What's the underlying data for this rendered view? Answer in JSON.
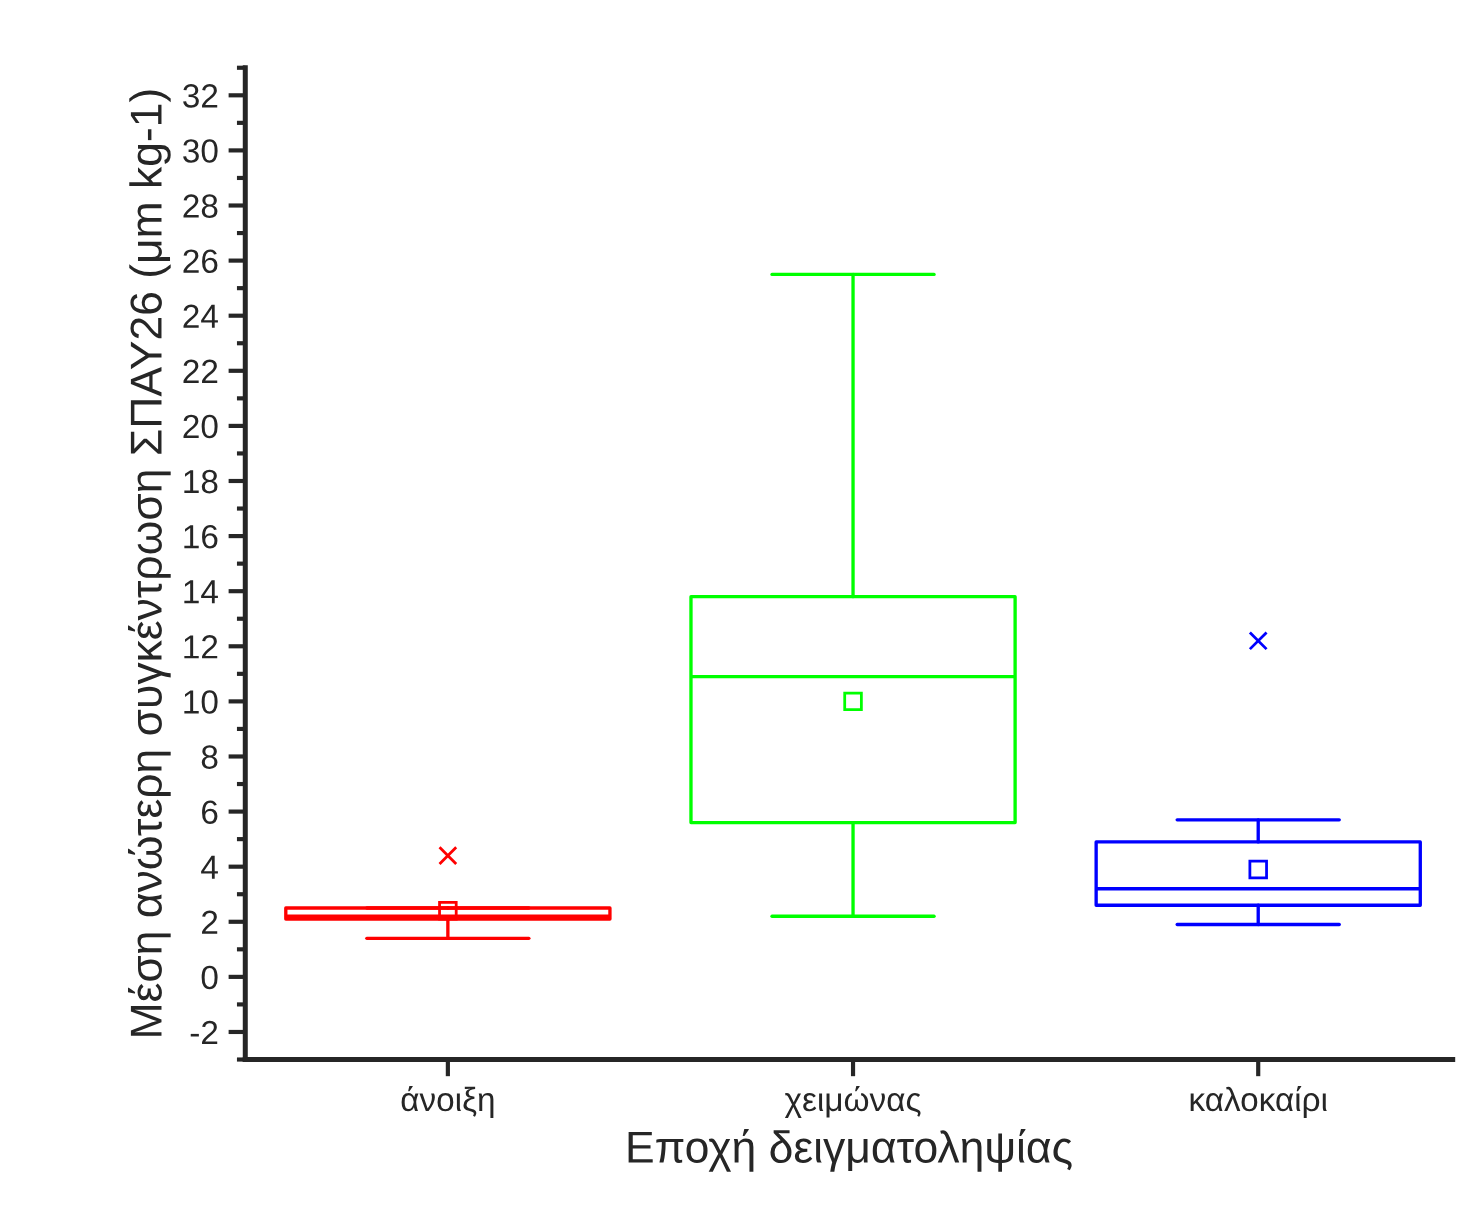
{
  "chart_data": {
    "type": "box",
    "xlabel": "Εποχή δειγματοληψίας",
    "ylabel": "Μέση ανώτερη συγκέντρωση ΣΠΑΥ26 (μm kg-1)",
    "categories": [
      "άνοιξη",
      "χειμώνας",
      "καλοκαίρι"
    ],
    "colors": [
      "#ff0000",
      "#00ff00",
      "#0000ff"
    ],
    "boxes": [
      {
        "low": 1.4,
        "q1": 2.1,
        "median": 2.2,
        "q3": 2.5,
        "high": 2.5,
        "mean": 2.4,
        "outliers": [
          4.4
        ]
      },
      {
        "low": 2.2,
        "q1": 5.6,
        "median": 10.9,
        "q3": 13.8,
        "high": 25.5,
        "mean": 10.0
      },
      {
        "low": 1.9,
        "q1": 2.6,
        "median": 3.2,
        "q3": 4.9,
        "high": 5.7,
        "mean": 3.9,
        "outliers": [
          12.2
        ]
      }
    ],
    "ylim": [
      -3,
      33
    ],
    "yticks": [
      -2,
      0,
      2,
      4,
      6,
      8,
      10,
      12,
      14,
      16,
      18,
      20,
      22,
      24,
      26,
      28,
      30,
      32
    ],
    "grid": false,
    "legend": false
  }
}
